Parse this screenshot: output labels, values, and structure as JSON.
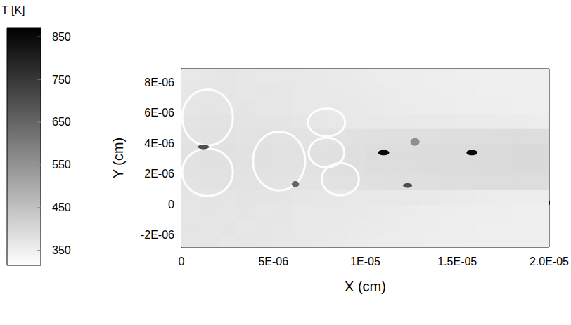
{
  "chart_data": {
    "type": "heatmap",
    "colorbar_title": "T [K]",
    "xlabel": "X (cm)",
    "ylabel": "Y (cm)",
    "grid": false,
    "xlim": [
      0,
      2e-05
    ],
    "ylim": [
      -2.8e-06,
      8.9e-06
    ],
    "xticks": [
      0,
      {
        "value": 5e-06,
        "label": "5E-06"
      },
      {
        "value": 1e-05,
        "label": "1E-05"
      },
      {
        "value": 1.5e-05,
        "label": "1.5E-05"
      },
      {
        "value": 2e-05,
        "label": "2.0E-05"
      }
    ],
    "yticks": [
      {
        "value": -2e-06,
        "label": "-2E-06"
      },
      0,
      {
        "value": 2e-06,
        "label": "2E-06"
      },
      {
        "value": 4e-06,
        "label": "4E-06"
      },
      {
        "value": 6e-06,
        "label": "6E-06"
      },
      {
        "value": 8e-06,
        "label": "8E-06"
      }
    ],
    "colorbar": {
      "range": [
        315,
        870
      ],
      "ticks": [
        350,
        450,
        550,
        650,
        750,
        850
      ]
    },
    "cells": {
      "x": [
        5e-07,
        1.5e-06,
        2.5e-06,
        3.5e-06,
        4.5e-06,
        5.5e-06,
        6.5e-06,
        7.5e-06,
        8.5e-06,
        9.5e-06,
        1.05e-05,
        1.15e-05,
        1.25e-05,
        1.35e-05,
        1.45e-05,
        1.55e-05,
        1.65e-05,
        1.75e-05,
        1.85e-05,
        1.95e-05
      ],
      "y": [
        -2.5e-06,
        -1.5e-06,
        -5e-07,
        5e-07,
        1.5e-06,
        2.5e-06,
        3.5e-06,
        4.5e-06,
        5.5e-06,
        6.5e-06,
        7.5e-06,
        8.5e-06
      ],
      "T": [
        [
          370,
          372,
          368,
          370,
          368,
          366,
          365,
          362,
          360,
          358,
          356,
          355,
          354,
          352,
          352,
          350,
          350,
          350,
          350,
          350
        ],
        [
          372,
          370,
          372,
          368,
          370,
          368,
          366,
          364,
          362,
          360,
          358,
          356,
          355,
          354,
          352,
          352,
          350,
          350,
          350,
          350
        ],
        [
          370,
          372,
          370,
          372,
          368,
          370,
          366,
          366,
          364,
          362,
          360,
          358,
          356,
          355,
          354,
          352,
          352,
          352,
          350,
          350
        ],
        [
          372,
          374,
          372,
          374,
          372,
          372,
          370,
          368,
          368,
          366,
          366,
          365,
          364,
          362,
          360,
          358,
          356,
          355,
          355,
          355
        ],
        [
          375,
          378,
          378,
          376,
          378,
          376,
          375,
          376,
          378,
          380,
          382,
          384,
          384,
          385,
          386,
          386,
          388,
          388,
          390,
          390
        ],
        [
          378,
          380,
          380,
          378,
          380,
          378,
          378,
          380,
          382,
          385,
          388,
          390,
          390,
          392,
          392,
          392,
          394,
          394,
          395,
          395
        ],
        [
          378,
          380,
          380,
          378,
          380,
          378,
          378,
          380,
          382,
          385,
          388,
          390,
          390,
          392,
          392,
          392,
          394,
          394,
          395,
          395
        ],
        [
          375,
          378,
          378,
          376,
          378,
          376,
          375,
          376,
          378,
          380,
          382,
          384,
          384,
          385,
          386,
          386,
          386,
          388,
          388,
          388
        ],
        [
          374,
          376,
          376,
          374,
          372,
          372,
          370,
          368,
          366,
          364,
          364,
          362,
          362,
          360,
          360,
          358,
          358,
          356,
          356,
          355
        ],
        [
          370,
          372,
          370,
          372,
          368,
          368,
          366,
          366,
          364,
          362,
          360,
          358,
          356,
          355,
          354,
          352,
          352,
          352,
          350,
          350
        ],
        [
          368,
          370,
          372,
          368,
          370,
          368,
          366,
          364,
          362,
          360,
          358,
          356,
          355,
          354,
          352,
          352,
          350,
          350,
          350,
          350
        ],
        [
          366,
          368,
          370,
          368,
          366,
          365,
          364,
          362,
          360,
          358,
          356,
          355,
          354,
          352,
          352,
          350,
          350,
          350,
          350,
          350
        ]
      ]
    },
    "rings": [
      {
        "x": 1.42e-06,
        "y": 5.7e-06,
        "rx": 1.38e-06,
        "ry": 1.84e-06,
        "T": 320
      },
      {
        "x": 1.42e-06,
        "y": 2.11e-06,
        "rx": 1.38e-06,
        "ry": 1.56e-06,
        "T": 320
      },
      {
        "x": 5.31e-06,
        "y": 2.85e-06,
        "rx": 1.42e-06,
        "ry": 1.93e-06,
        "T": 320
      },
      {
        "x": 7.89e-06,
        "y": 5.38e-06,
        "rx": 1.01e-06,
        "ry": 9.2e-07,
        "T": 320
      },
      {
        "x": 7.89e-06,
        "y": 3.4e-06,
        "rx": 9.7e-07,
        "ry": 9.7e-07,
        "T": 320
      },
      {
        "x": 8.64e-06,
        "y": 1.66e-06,
        "rx": 1.01e-06,
        "ry": 1.06e-06,
        "T": 320
      }
    ],
    "spots": [
      {
        "x": 1.1e-05,
        "y": 3.4e-06,
        "rx": 3e-07,
        "ry": 1.8e-07,
        "T": 850
      },
      {
        "x": 1.58e-05,
        "y": 3.4e-06,
        "rx": 3e-07,
        "ry": 1.8e-07,
        "T": 850
      },
      {
        "x": 1.27e-05,
        "y": 4.1e-06,
        "rx": 2.5e-07,
        "ry": 2.5e-07,
        "T": 560
      },
      {
        "x": 6.2e-06,
        "y": 1.33e-06,
        "rx": 2e-07,
        "ry": 2e-07,
        "T": 650
      },
      {
        "x": 1.23e-05,
        "y": 1.24e-06,
        "rx": 2.5e-07,
        "ry": 1.5e-07,
        "T": 700
      },
      {
        "x": 1.2e-06,
        "y": 3.77e-06,
        "rx": 3e-07,
        "ry": 1.5e-07,
        "T": 700
      }
    ]
  }
}
